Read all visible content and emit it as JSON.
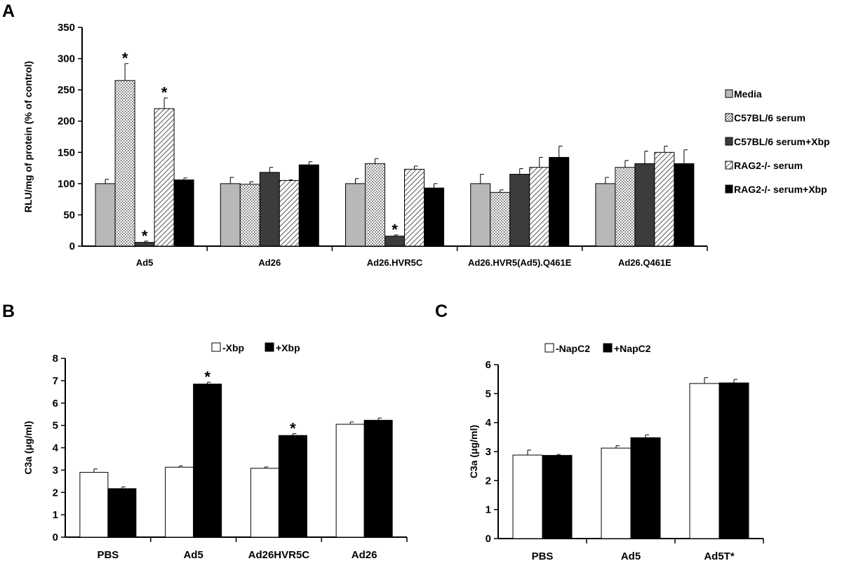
{
  "panels": {
    "a": "A",
    "b": "B",
    "c": "C"
  },
  "colors": {
    "media": "#b8b8b8",
    "c57": "#ffffff",
    "c57xbp": "#3c3c3c",
    "rag2": "#ffffff",
    "rag2xbp": "#000000",
    "minus": "#ffffff",
    "plus": "#000000"
  },
  "chart_data": [
    {
      "type": "bar",
      "ylabel": "RLU/mg of protein (% of control)",
      "ylim": [
        0,
        350
      ],
      "yticks": [
        0,
        50,
        100,
        150,
        200,
        250,
        300,
        350
      ],
      "categories": [
        "Ad5",
        "Ad26",
        "Ad26.HVR5C",
        "Ad26.HVR5(Ad5).Q461E",
        "Ad26.Q461E"
      ],
      "legend_position": "right",
      "series": [
        {
          "name": "Media",
          "values": [
            100,
            100,
            100,
            100,
            100
          ],
          "errors": [
            7,
            10,
            8,
            15,
            10
          ],
          "pattern": "solid-gray"
        },
        {
          "name": "C57BL/6 serum",
          "values": [
            265,
            99,
            132,
            86,
            126
          ],
          "errors": [
            27,
            4,
            8,
            4,
            11
          ],
          "pattern": "dots"
        },
        {
          "name": "C57BL/6 serum+Xbp",
          "values": [
            6,
            118,
            16,
            115,
            132
          ],
          "errors": [
            2,
            8,
            2,
            9,
            20
          ],
          "pattern": "solid-dark"
        },
        {
          "name": "RAG2-/- serum",
          "values": [
            220,
            105,
            123,
            126,
            150
          ],
          "errors": [
            17,
            1,
            5,
            16,
            10
          ],
          "pattern": "diagonal"
        },
        {
          "name": "RAG2-/- serum+Xbp",
          "values": [
            106,
            130,
            93,
            142,
            132
          ],
          "errors": [
            3,
            5,
            7,
            18,
            22
          ],
          "pattern": "solid-black"
        }
      ],
      "annotations": [
        {
          "text": "*",
          "category": "Ad5",
          "series": 1
        },
        {
          "text": "*",
          "category": "Ad5",
          "series": 2
        },
        {
          "text": "*",
          "category": "Ad5",
          "series": 3
        },
        {
          "text": "*",
          "category": "Ad26.HVR5C",
          "series": 2
        }
      ]
    },
    {
      "type": "bar",
      "ylabel": "C3a (μg/ml)",
      "ylim": [
        0,
        8
      ],
      "yticks": [
        0,
        1,
        2,
        3,
        4,
        5,
        6,
        7,
        8
      ],
      "categories": [
        "PBS",
        "Ad5",
        "Ad26HVR5C",
        "Ad26"
      ],
      "legend_position": "top",
      "series": [
        {
          "name": "-Xbp",
          "values": [
            2.9,
            3.13,
            3.08,
            5.05
          ],
          "errors": [
            0.15,
            0.06,
            0.06,
            0.1
          ],
          "pattern": "white"
        },
        {
          "name": "+Xbp",
          "values": [
            2.17,
            6.85,
            4.55,
            5.23
          ],
          "errors": [
            0.08,
            0.08,
            0.08,
            0.1
          ],
          "pattern": "black"
        }
      ],
      "annotations": [
        {
          "text": "*",
          "category": "Ad5",
          "series": 1
        },
        {
          "text": "*",
          "category": "Ad26HVR5C",
          "series": 1
        }
      ]
    },
    {
      "type": "bar",
      "ylabel": "C3a (μg/ml)",
      "ylim": [
        0,
        6
      ],
      "yticks": [
        0,
        1,
        2,
        3,
        4,
        5,
        6
      ],
      "categories": [
        "PBS",
        "Ad5",
        "Ad5T*"
      ],
      "legend_position": "top",
      "series": [
        {
          "name": "-NapC2",
          "values": [
            2.88,
            3.12,
            5.35
          ],
          "errors": [
            0.17,
            0.08,
            0.2
          ],
          "pattern": "white"
        },
        {
          "name": "+NapC2",
          "values": [
            2.87,
            3.48,
            5.37
          ],
          "errors": [
            0.03,
            0.1,
            0.12
          ],
          "pattern": "black"
        }
      ],
      "annotations": []
    }
  ]
}
